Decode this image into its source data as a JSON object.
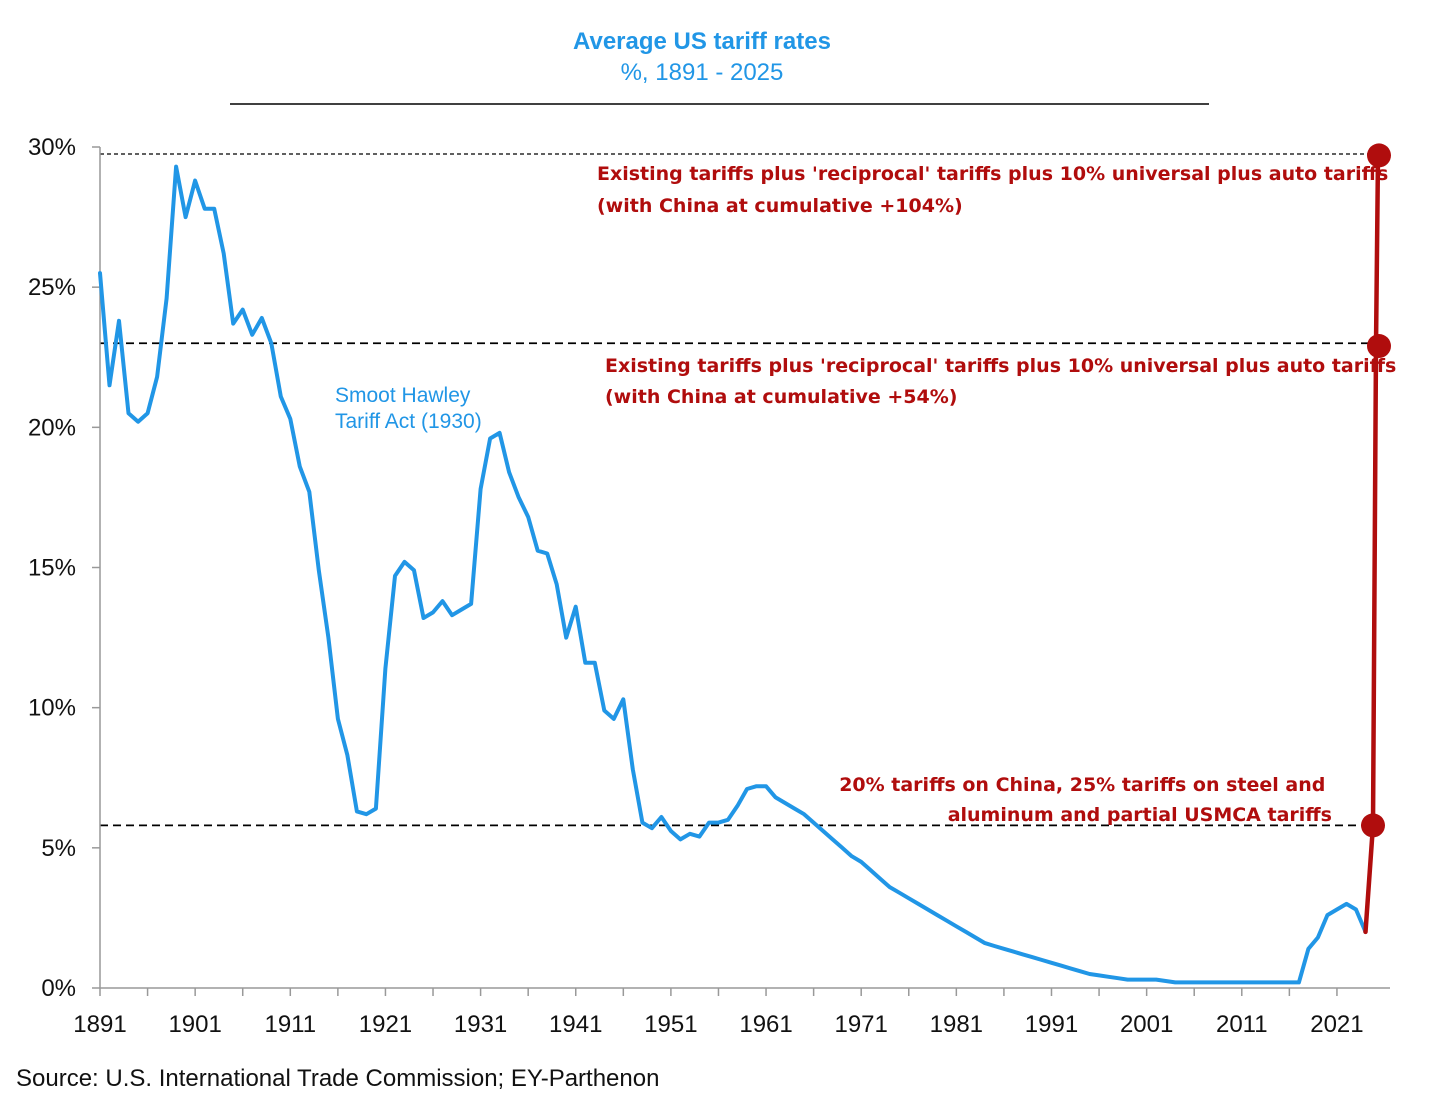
{
  "chart_data": {
    "type": "line",
    "title": "Average US tariff rates",
    "subtitle": "%, 1891 - 2025",
    "xlabel": "",
    "ylabel": "",
    "xlim": [
      1891,
      2025
    ],
    "ylim": [
      0,
      30
    ],
    "y_ticks": [
      0,
      5,
      10,
      15,
      20,
      25,
      30
    ],
    "y_tick_labels": [
      "0%",
      "5%",
      "10%",
      "15%",
      "20%",
      "25%",
      "30%"
    ],
    "x_ticks": [
      1891,
      1901,
      1911,
      1921,
      1931,
      1941,
      1951,
      1961,
      1971,
      1981,
      1991,
      2001,
      2011,
      2021
    ],
    "x_tick_labels": [
      "1891",
      "1901",
      "1911",
      "1921",
      "1931",
      "1941",
      "1951",
      "1961",
      "1971",
      "1981",
      "1991",
      "2001",
      "2011",
      "2021"
    ],
    "grid": false,
    "series": [
      {
        "color": "#2196e6",
        "x": [
          1891,
          1892,
          1893,
          1894,
          1895,
          1896,
          1897,
          1898,
          1899,
          1900,
          1901,
          1902,
          1903,
          1904,
          1905,
          1906,
          1907,
          1908,
          1909,
          1910,
          1911,
          1912,
          1913,
          1914,
          1915,
          1916,
          1917,
          1918,
          1919,
          1920,
          1921,
          1922,
          1923,
          1924,
          1925,
          1926,
          1927,
          1928,
          1929,
          1930,
          1931,
          1932,
          1933,
          1934,
          1935,
          1936,
          1937,
          1938,
          1939,
          1940,
          1941,
          1942,
          1943,
          1944,
          1945,
          1946,
          1947,
          1948,
          1949,
          1950,
          1951,
          1952,
          1953,
          1954,
          1955,
          1956,
          1957,
          1958,
          1959,
          1960,
          1961,
          1962,
          1963,
          1964,
          1965,
          1966,
          1967,
          1968,
          1969,
          1970,
          1971,
          1972,
          1973,
          1974,
          1975,
          1976,
          1977,
          1978,
          1979,
          1980,
          1981,
          1982,
          1983,
          1984,
          1985,
          1986,
          1987,
          1988,
          1989,
          1990,
          1991,
          1992,
          1993,
          1994,
          1995,
          1996,
          1997,
          1998,
          1999,
          2000,
          2001,
          2002,
          2003,
          2004,
          2005,
          2006,
          2007,
          2008,
          2009,
          2010,
          2011,
          2012,
          2013,
          2014,
          2015,
          2016,
          2017,
          2018,
          2019,
          2020,
          2021,
          2022,
          2023,
          2024
        ],
        "values": [
          25.5,
          21.5,
          23.8,
          20.5,
          20.2,
          20.5,
          21.8,
          24.6,
          29.3,
          27.5,
          28.8,
          27.8,
          27.8,
          26.2,
          23.7,
          24.2,
          23.3,
          23.9,
          23.0,
          21.1,
          20.3,
          18.6,
          17.7,
          14.9,
          12.5,
          9.6,
          8.3,
          6.3,
          6.2,
          6.4,
          11.4,
          14.7,
          15.2,
          14.9,
          13.2,
          13.4,
          13.8,
          13.3,
          13.5,
          13.7,
          17.8,
          19.6,
          19.8,
          18.4,
          17.5,
          16.8,
          15.6,
          15.5,
          14.4,
          12.5,
          13.6,
          11.6,
          11.6,
          9.9,
          9.6,
          10.3,
          7.8,
          5.9,
          5.7,
          6.1,
          5.6,
          5.3,
          5.5,
          5.4,
          5.9,
          5.9,
          6.0,
          6.5,
          7.1,
          7.2,
          7.2,
          6.8,
          6.6,
          6.4,
          6.2,
          5.9,
          5.6,
          5.3,
          5.0,
          4.7,
          4.5,
          4.2,
          3.9,
          3.6,
          3.4,
          3.2,
          3.0,
          2.8,
          2.6,
          2.4,
          2.2,
          2.0,
          1.8,
          1.6,
          1.5,
          1.4,
          1.3,
          1.2,
          1.1,
          1.0,
          0.9,
          0.8,
          0.7,
          0.6,
          0.5,
          0.45,
          0.4,
          0.35,
          0.3,
          0.3,
          0.3,
          0.3,
          0.25,
          0.2,
          0.2,
          0.2,
          0.2,
          0.2,
          0.2,
          0.2,
          0.2,
          0.2,
          0.2,
          0.2,
          0.2,
          0.2,
          0.2,
          1.4,
          1.8,
          2.6,
          2.8,
          3.0,
          2.8,
          2.0
        ]
      },
      {
        "color": "#b00d0d",
        "x": [
          2024,
          2025,
          2025,
          2025
        ],
        "values": [
          2.0,
          5.8,
          22.9,
          29.7
        ]
      }
    ],
    "markers": [
      {
        "x": 2025,
        "value": 5.8
      },
      {
        "x": 2025,
        "value": 22.9
      },
      {
        "x": 2025,
        "value": 29.7
      }
    ],
    "reference_lines": [
      {
        "value": 29.75,
        "style": "dotted"
      },
      {
        "value": 23.0,
        "style": "dashed"
      },
      {
        "value": 5.8,
        "style": "dashed"
      }
    ],
    "annotations": [
      {
        "lines": [
          "Existing tariffs plus 'reciprocal' tariffs plus 10% universal plus auto tariffs",
          "(with China at cumulative +104%)"
        ],
        "color": "#b00d0d"
      },
      {
        "lines": [
          "Existing tariffs plus 'reciprocal' tariffs plus 10% universal plus auto tariffs",
          "(with China at cumulative +54%)"
        ],
        "color": "#b00d0d"
      },
      {
        "lines": [
          "20% tariffs on China, 25% tariffs on steel and",
          "aluminum and partial USMCA tariffs"
        ],
        "color": "#b00d0d"
      },
      {
        "lines": [
          "Smoot Hawley",
          "Tariff Act (1930)"
        ],
        "color": "#2196e6"
      }
    ],
    "source": "Source: U.S. International Trade Commission; EY-Parthenon"
  }
}
